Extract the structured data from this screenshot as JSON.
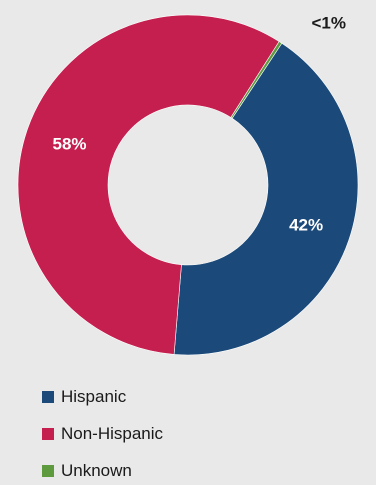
{
  "chart_data": {
    "type": "pie",
    "categories": [
      "Hispanic",
      "Non-Hispanic",
      "Unknown"
    ],
    "values": [
      42,
      57.7,
      0.3
    ],
    "labels": [
      "42%",
      "58%",
      "<1%"
    ],
    "colors": [
      "#1b4a7a",
      "#c51f4f",
      "#5e9a3e"
    ],
    "legend_position": "bottom-left"
  }
}
